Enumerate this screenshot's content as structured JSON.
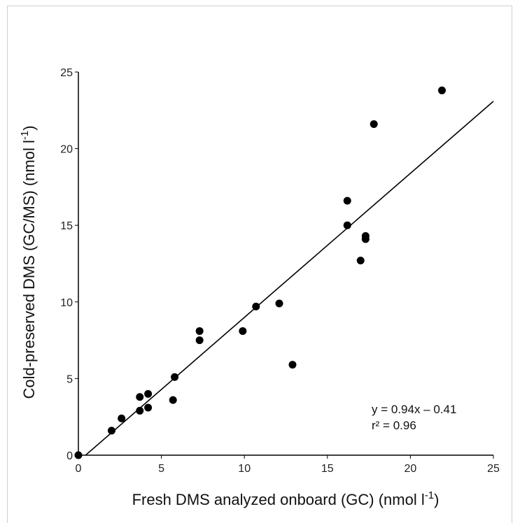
{
  "chart_data": {
    "type": "scatter",
    "xlabel": "Fresh DMS analyzed onboard (GC) (nmol l",
    "xlabel_sup": "-1",
    "xlabel_end": ")",
    "ylabel": "Cold-preserved DMS (GC/MS)  (nmol l",
    "ylabel_sup": "-1",
    "ylabel_end": ")",
    "xlim": [
      0,
      25
    ],
    "ylim": [
      0,
      25
    ],
    "xticks": [
      "0",
      "5",
      "10",
      "15",
      "20",
      "25"
    ],
    "yticks": [
      "0",
      "5",
      "10",
      "15",
      "20",
      "25"
    ],
    "grid": false,
    "points": [
      {
        "x": 0.0,
        "y": 0.0
      },
      {
        "x": 2.0,
        "y": 1.6
      },
      {
        "x": 2.6,
        "y": 2.4
      },
      {
        "x": 3.7,
        "y": 3.8
      },
      {
        "x": 3.7,
        "y": 2.9
      },
      {
        "x": 4.2,
        "y": 4.0
      },
      {
        "x": 4.2,
        "y": 3.1
      },
      {
        "x": 5.7,
        "y": 3.6
      },
      {
        "x": 5.8,
        "y": 5.1
      },
      {
        "x": 7.3,
        "y": 8.1
      },
      {
        "x": 7.3,
        "y": 7.5
      },
      {
        "x": 9.9,
        "y": 8.1
      },
      {
        "x": 10.7,
        "y": 9.7
      },
      {
        "x": 12.1,
        "y": 9.9
      },
      {
        "x": 12.9,
        "y": 5.9
      },
      {
        "x": 16.2,
        "y": 16.6
      },
      {
        "x": 16.2,
        "y": 15.0
      },
      {
        "x": 17.0,
        "y": 12.7
      },
      {
        "x": 17.3,
        "y": 14.1
      },
      {
        "x": 17.3,
        "y": 14.3
      },
      {
        "x": 17.8,
        "y": 21.6
      },
      {
        "x": 21.9,
        "y": 23.8
      }
    ],
    "fit": {
      "slope": 0.94,
      "intercept": -0.41
    },
    "annotations": [
      "y = 0.94x – 0.41",
      "r² = 0.96"
    ]
  }
}
